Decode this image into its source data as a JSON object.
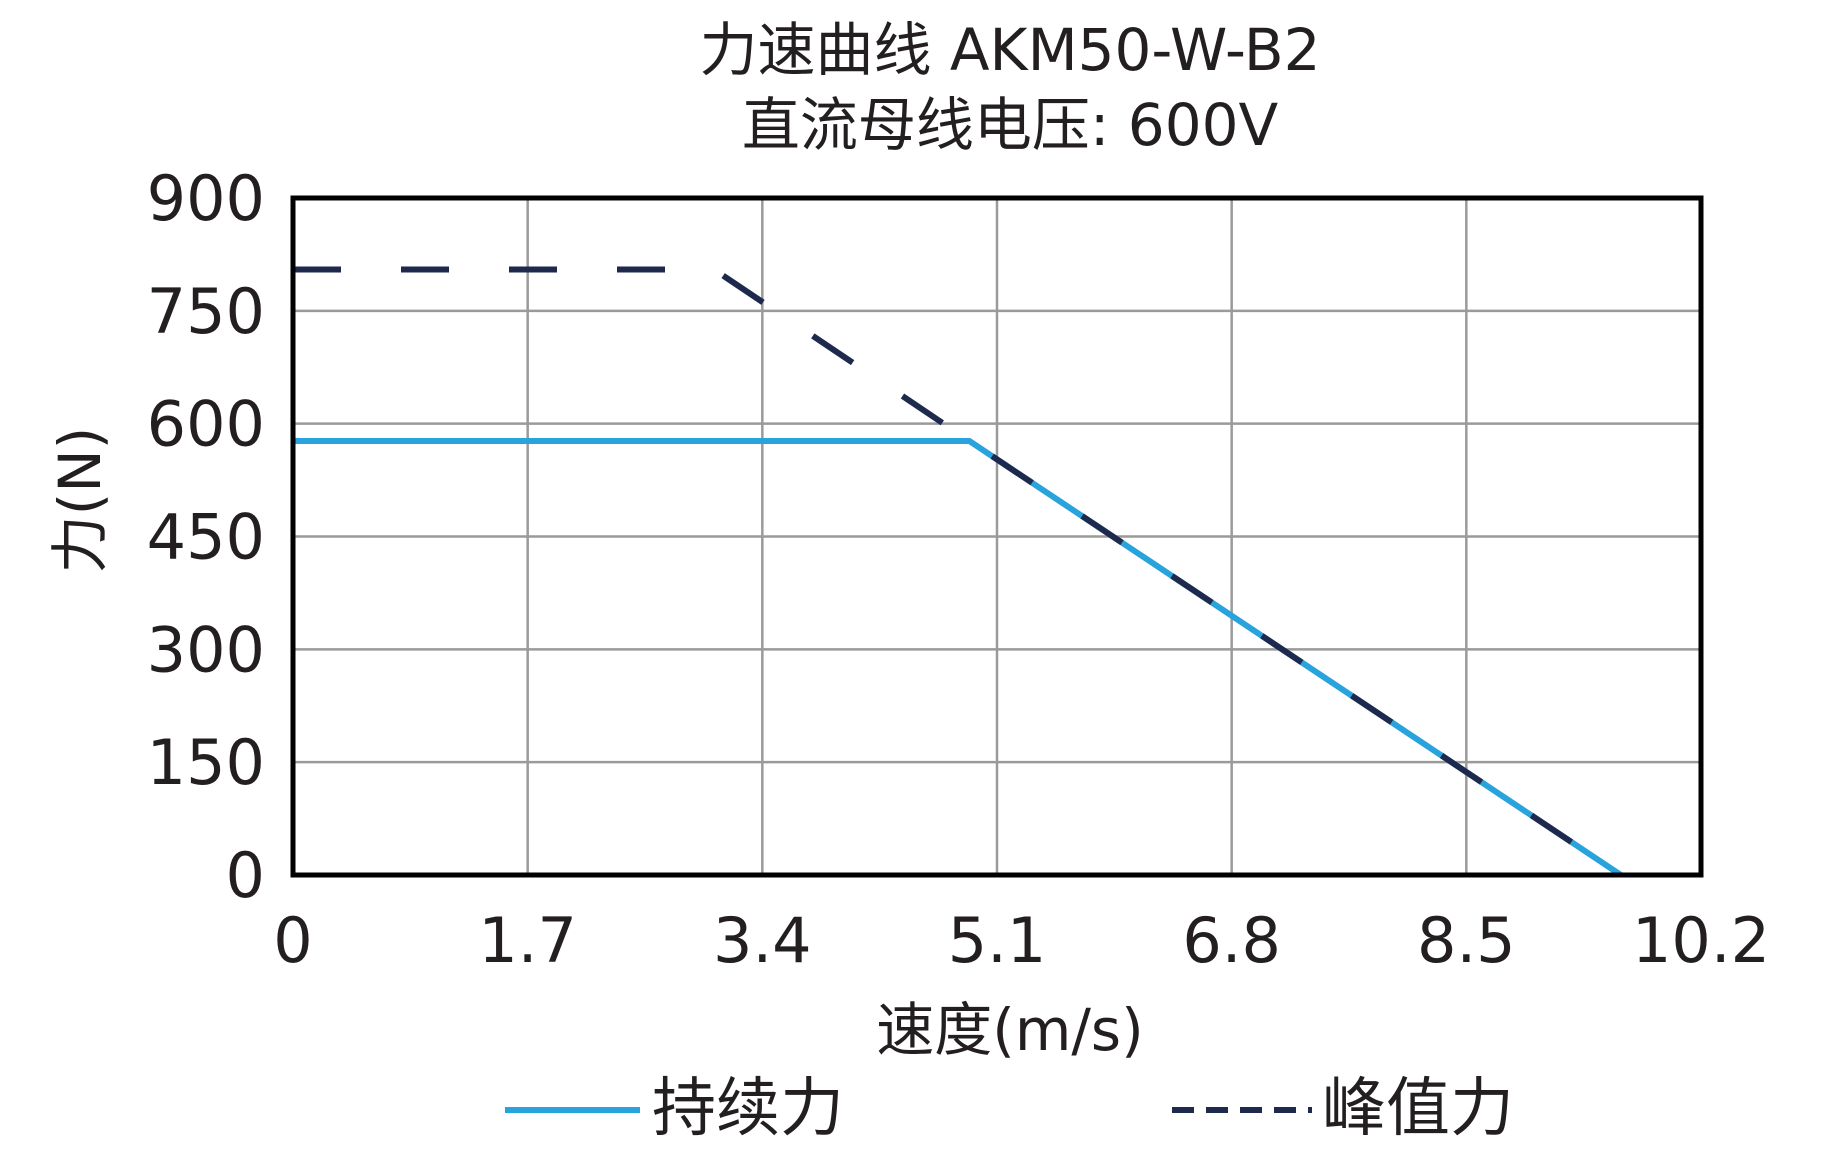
{
  "chart_data": {
    "type": "line",
    "title": "力速曲线 AKM50-W-B2",
    "subtitle": "直流母线电压: 600V",
    "xlabel": "速度(m/s)",
    "ylabel": "力(N)",
    "xlim": [
      0,
      10.2
    ],
    "ylim": [
      0,
      900
    ],
    "xticks": [
      "0",
      "1.7",
      "3.4",
      "5.1",
      "6.8",
      "8.5",
      "10.2"
    ],
    "yticks": [
      "0",
      "150",
      "300",
      "450",
      "600",
      "750",
      "900"
    ],
    "xtick_values": [
      0,
      1.7,
      3.4,
      5.1,
      6.8,
      8.5,
      10.2
    ],
    "ytick_values": [
      0,
      150,
      300,
      450,
      600,
      750,
      900
    ],
    "grid": true,
    "legend_position": "bottom",
    "series": [
      {
        "name": "持续力",
        "style": "solid",
        "color": "#29a3dc",
        "points": [
          [
            0,
            577
          ],
          [
            4.9,
            577
          ],
          [
            9.62,
            0
          ]
        ]
      },
      {
        "name": "峰值力",
        "style": "dashed",
        "color": "#1d2a4d",
        "points": [
          [
            0,
            805
          ],
          [
            3.05,
            805
          ],
          [
            4.9,
            577
          ],
          [
            9.62,
            0
          ]
        ]
      }
    ]
  }
}
